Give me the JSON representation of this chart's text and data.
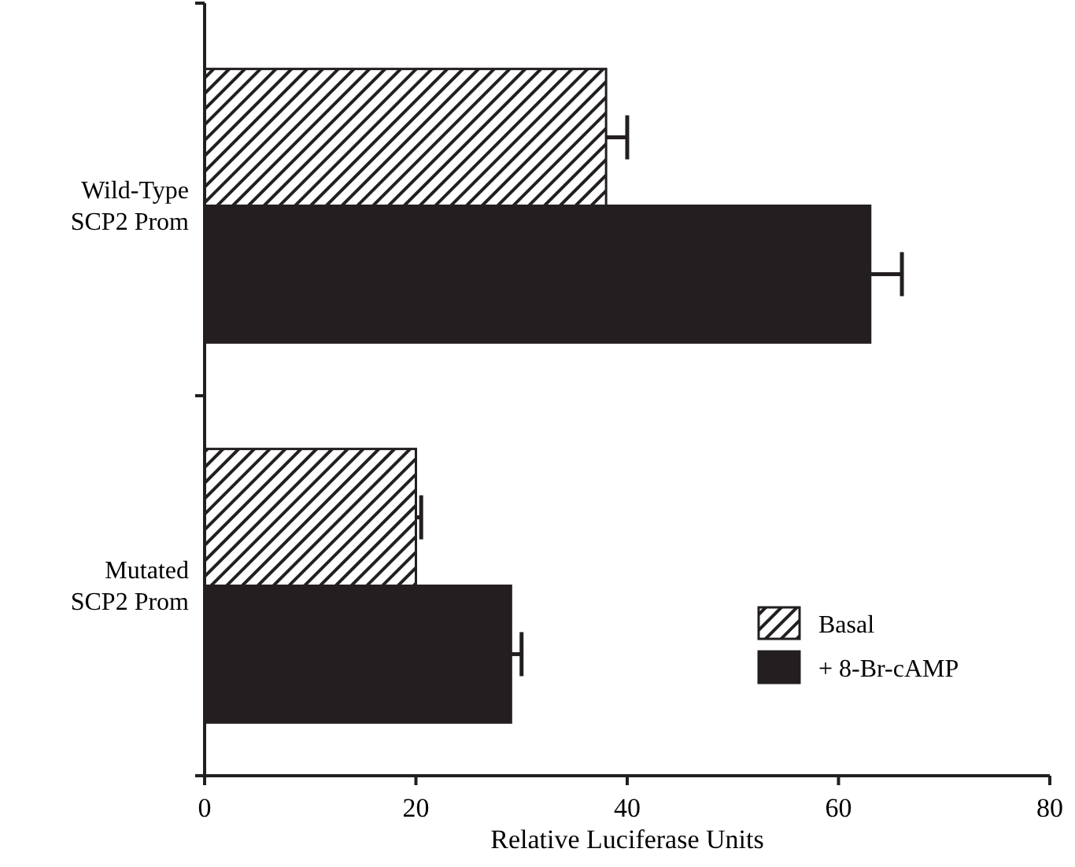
{
  "chart_data": {
    "type": "bar",
    "orientation": "horizontal",
    "xlabel": "Relative Luciferase Units",
    "categories": [
      "Wild-Type SCP2 Prom",
      "Mutated SCP2 Prom"
    ],
    "series": [
      {
        "name": "Basal",
        "color": "#231f20",
        "values": [
          38,
          20
        ],
        "errors": [
          [
            38,
            40
          ],
          [
            20,
            20.5
          ]
        ]
      },
      {
        "name": "+ 8-Br-cAMP",
        "color": "#231f20",
        "values": [
          63,
          29
        ],
        "errors": [
          [
            63,
            66
          ],
          [
            29,
            30
          ]
        ]
      }
    ],
    "xlim": [
      0,
      80
    ],
    "xticks": [
      0,
      20,
      40,
      60,
      80
    ],
    "grid": false,
    "legend": "bottom right"
  }
}
